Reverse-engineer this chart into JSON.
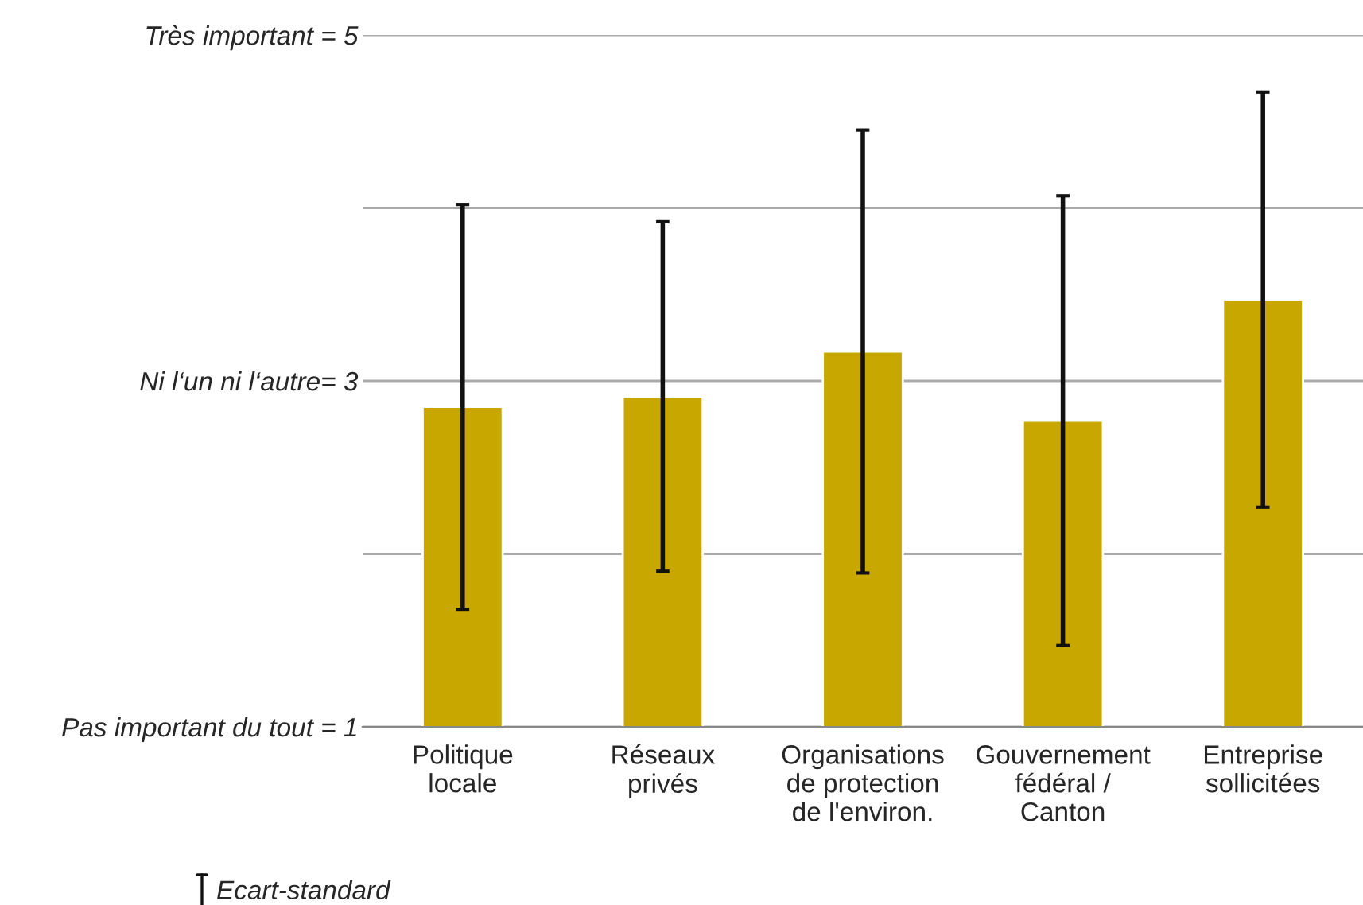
{
  "chart_data": {
    "type": "bar",
    "categories": [
      "Politique\nlocale",
      "Réseaux\nprivés",
      "Organisations\nde protection\nde l'environ.",
      "Gouvernement\nfédéral /\nCanton",
      "Entreprise\nsollicitées"
    ],
    "values": [
      2.85,
      2.91,
      3.17,
      2.77,
      3.47
    ],
    "errors": [
      1.17,
      1.01,
      1.28,
      1.3,
      1.2
    ],
    "color": "#c8a800",
    "ylim": [
      1,
      5
    ],
    "yticks": [
      {
        "value": 1,
        "label": "Pas important du tout = 1"
      },
      {
        "value": 2,
        "label": null
      },
      {
        "value": 3,
        "label": "Ni l‘un ni l‘autre= 3"
      },
      {
        "value": 4,
        "label": null
      },
      {
        "value": 5,
        "label": "Très important = 5"
      }
    ],
    "grid": "y",
    "annotations": [
      "Ecart-standard"
    ]
  }
}
